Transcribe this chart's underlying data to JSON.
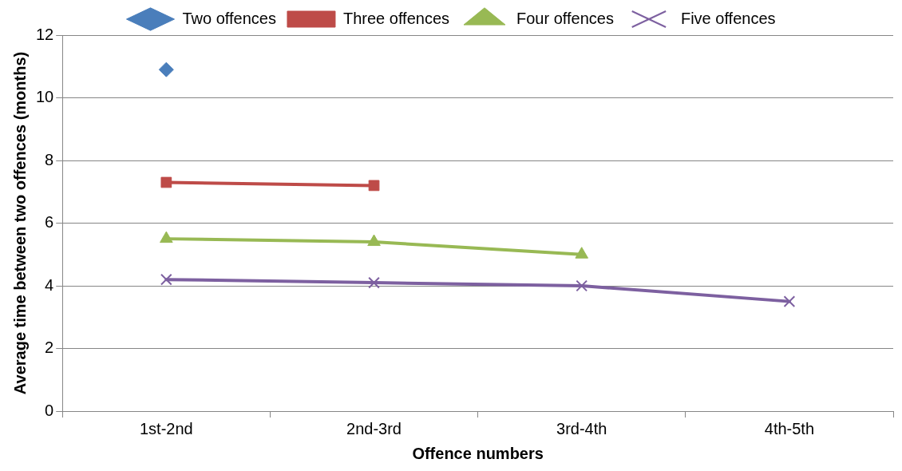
{
  "chart_data": {
    "type": "line",
    "xlabel": "Offence numbers",
    "ylabel": "Average time between two offences (months)",
    "categories": [
      "1st-2nd",
      "2nd-3rd",
      "3rd-4th",
      "4th-5th"
    ],
    "series": [
      {
        "name": "Two offences",
        "color": "#4a7ebb",
        "marker": "diamond",
        "values": [
          10.9,
          null,
          null,
          null
        ]
      },
      {
        "name": "Three offences",
        "color": "#be4b48",
        "marker": "square",
        "values": [
          7.3,
          7.2,
          null,
          null
        ]
      },
      {
        "name": "Four offences",
        "color": "#98b954",
        "marker": "triangle",
        "values": [
          5.5,
          5.4,
          5.0,
          null
        ]
      },
      {
        "name": "Five offences",
        "color": "#7d60a0",
        "marker": "cross",
        "values": [
          4.2,
          4.1,
          4.0,
          3.5
        ]
      }
    ],
    "ylim": [
      0,
      12
    ],
    "yticks": [
      0,
      2,
      4,
      6,
      8,
      10,
      12
    ],
    "grid": "y",
    "legend": "top",
    "line_style": "solid"
  }
}
